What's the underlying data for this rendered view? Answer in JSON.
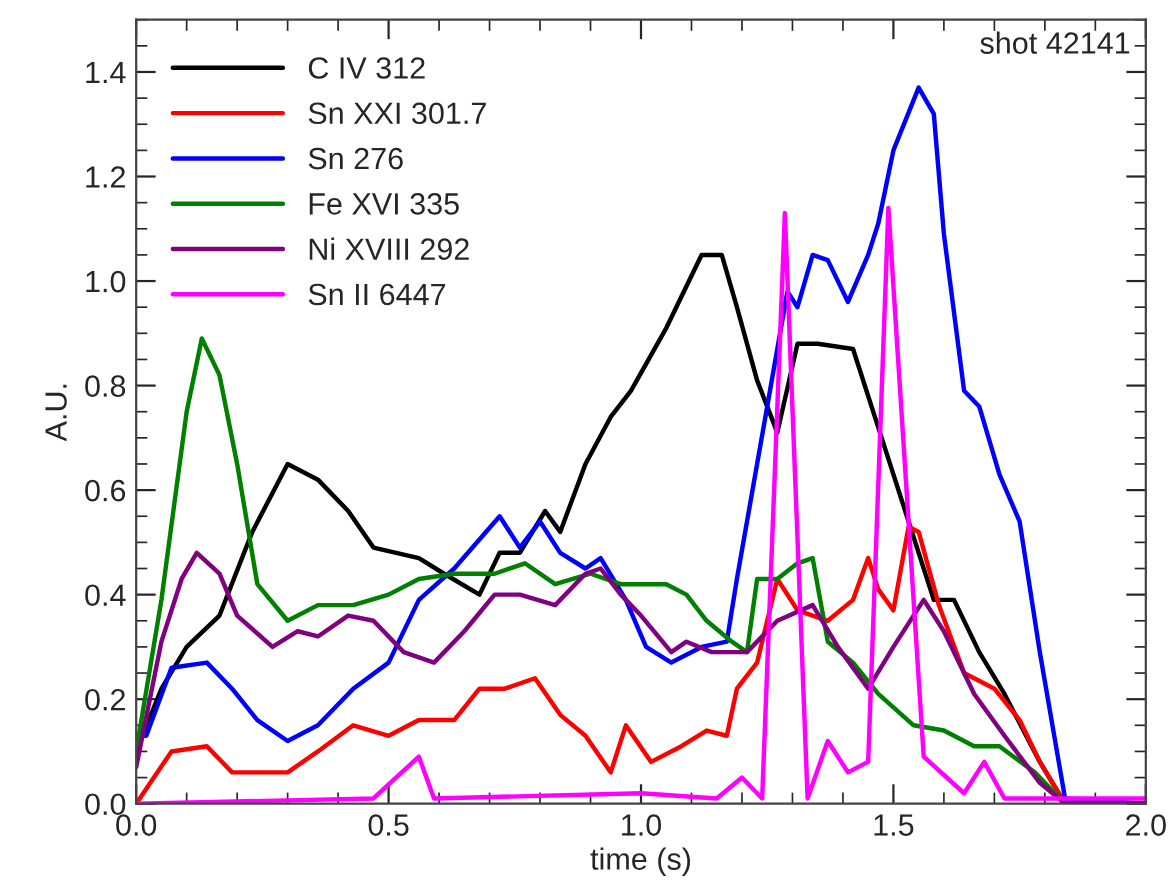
{
  "chart_data": {
    "type": "line",
    "xlabel": "time (s)",
    "ylabel": "A.U.",
    "annotations": [
      "shot 42141"
    ],
    "xlim": [
      0,
      2.0
    ],
    "xticks": [
      {
        "value": 0,
        "label": "0.0"
      },
      0.5,
      {
        "value": 1,
        "label": "1.0"
      },
      1.5,
      {
        "value": 2,
        "label": "2.0"
      }
    ],
    "ylim": [
      0,
      1.5
    ],
    "yticks": [
      {
        "value": 0,
        "label": "0.0"
      },
      0.2,
      0.4,
      0.6,
      0.8,
      {
        "value": 1,
        "label": "1.0"
      },
      1.2,
      1.4
    ],
    "grid": false,
    "legend": "top left",
    "series": [
      {
        "name": "C IV 312",
        "color": "#000000",
        "x": [
          0,
          0.05,
          0.1,
          0.165,
          0.23,
          0.3,
          0.36,
          0.42,
          0.47,
          0.56,
          0.61,
          0.68,
          0.72,
          0.76,
          0.81,
          0.84,
          0.89,
          0.94,
          0.98,
          1.05,
          1.12,
          1.16,
          1.19,
          1.23,
          1.27,
          1.31,
          1.35,
          1.42,
          1.47,
          1.53,
          1.58,
          1.62,
          1.67,
          1.72,
          1.79,
          1.84,
          2.0
        ],
        "values": [
          0.1,
          0.22,
          0.3,
          0.36,
          0.52,
          0.65,
          0.62,
          0.56,
          0.49,
          0.47,
          0.44,
          0.4,
          0.48,
          0.48,
          0.56,
          0.52,
          0.65,
          0.74,
          0.79,
          0.91,
          1.05,
          1.05,
          0.95,
          0.81,
          0.71,
          0.88,
          0.88,
          0.87,
          0.72,
          0.54,
          0.39,
          0.39,
          0.29,
          0.21,
          0.08,
          0,
          0
        ]
      },
      {
        "name": "Sn XXI 301.7",
        "color": "#ff0000",
        "x": [
          0,
          0.07,
          0.14,
          0.19,
          0.3,
          0.36,
          0.43,
          0.5,
          0.56,
          0.63,
          0.68,
          0.73,
          0.79,
          0.84,
          0.89,
          0.94,
          0.97,
          1.02,
          1.08,
          1.13,
          1.17,
          1.19,
          1.23,
          1.27,
          1.31,
          1.37,
          1.42,
          1.45,
          1.47,
          1.5,
          1.53,
          1.55,
          1.59,
          1.64,
          1.7,
          1.75,
          1.79,
          1.84,
          2.0
        ],
        "values": [
          0,
          0.1,
          0.11,
          0.06,
          0.06,
          0.1,
          0.15,
          0.13,
          0.16,
          0.16,
          0.22,
          0.22,
          0.24,
          0.17,
          0.13,
          0.06,
          0.15,
          0.08,
          0.11,
          0.14,
          0.13,
          0.22,
          0.27,
          0.43,
          0.37,
          0.35,
          0.39,
          0.47,
          0.41,
          0.37,
          0.53,
          0.52,
          0.38,
          0.25,
          0.22,
          0.16,
          0.08,
          0,
          0
        ]
      },
      {
        "name": "Sn 276",
        "color": "#0000ff",
        "x": [
          0,
          0.02,
          0.07,
          0.14,
          0.19,
          0.24,
          0.3,
          0.36,
          0.43,
          0.5,
          0.56,
          0.63,
          0.72,
          0.76,
          0.8,
          0.84,
          0.89,
          0.92,
          0.97,
          1.01,
          1.06,
          1.12,
          1.17,
          1.19,
          1.23,
          1.29,
          1.31,
          1.34,
          1.37,
          1.41,
          1.45,
          1.47,
          1.5,
          1.55,
          1.58,
          1.6,
          1.64,
          1.67,
          1.71,
          1.75,
          1.79,
          1.84,
          2.0
        ],
        "values": [
          0.13,
          0.13,
          0.26,
          0.27,
          0.22,
          0.16,
          0.12,
          0.15,
          0.22,
          0.27,
          0.39,
          0.45,
          0.55,
          0.49,
          0.54,
          0.48,
          0.45,
          0.47,
          0.39,
          0.3,
          0.27,
          0.3,
          0.31,
          0.43,
          0.65,
          0.98,
          0.95,
          1.05,
          1.04,
          0.96,
          1.05,
          1.11,
          1.25,
          1.37,
          1.32,
          1.09,
          0.79,
          0.76,
          0.63,
          0.54,
          0.29,
          0.01,
          0
        ]
      },
      {
        "name": "Fe XVI 335",
        "color": "#008000",
        "x": [
          0,
          0.05,
          0.1,
          0.13,
          0.165,
          0.2,
          0.24,
          0.3,
          0.36,
          0.43,
          0.5,
          0.56,
          0.63,
          0.71,
          0.77,
          0.83,
          0.9,
          0.96,
          1.05,
          1.09,
          1.13,
          1.18,
          1.21,
          1.23,
          1.27,
          1.31,
          1.34,
          1.37,
          1.42,
          1.47,
          1.54,
          1.6,
          1.66,
          1.71,
          1.78,
          1.84,
          2.0
        ],
        "values": [
          0.1,
          0.39,
          0.75,
          0.89,
          0.82,
          0.65,
          0.42,
          0.35,
          0.38,
          0.38,
          0.4,
          0.43,
          0.44,
          0.44,
          0.46,
          0.42,
          0.44,
          0.42,
          0.42,
          0.4,
          0.35,
          0.31,
          0.29,
          0.43,
          0.43,
          0.46,
          0.47,
          0.31,
          0.27,
          0.21,
          0.15,
          0.14,
          0.11,
          0.11,
          0.06,
          0,
          0
        ]
      },
      {
        "name": "Ni XVIII 292",
        "color": "#800080",
        "x": [
          0,
          0.05,
          0.09,
          0.12,
          0.165,
          0.2,
          0.27,
          0.32,
          0.36,
          0.42,
          0.47,
          0.53,
          0.59,
          0.65,
          0.71,
          0.76,
          0.83,
          0.89,
          0.92,
          0.96,
          1.0,
          1.06,
          1.09,
          1.14,
          1.21,
          1.27,
          1.34,
          1.39,
          1.45,
          1.5,
          1.56,
          1.6,
          1.66,
          1.72,
          1.79,
          1.84,
          2.0
        ],
        "values": [
          0.07,
          0.31,
          0.43,
          0.48,
          0.44,
          0.36,
          0.3,
          0.33,
          0.32,
          0.36,
          0.35,
          0.29,
          0.27,
          0.33,
          0.4,
          0.4,
          0.38,
          0.44,
          0.45,
          0.4,
          0.36,
          0.29,
          0.31,
          0.29,
          0.29,
          0.35,
          0.38,
          0.3,
          0.22,
          0.3,
          0.39,
          0.33,
          0.21,
          0.13,
          0.04,
          0,
          0
        ]
      },
      {
        "name": "Sn II 6447",
        "color": "#ff00ff",
        "x": [
          0,
          0.47,
          0.56,
          0.59,
          1.0,
          1.15,
          1.2,
          1.24,
          1.285,
          1.33,
          1.37,
          1.41,
          1.45,
          1.49,
          1.56,
          1.64,
          1.68,
          1.72,
          2.0
        ],
        "values": [
          0,
          0.01,
          0.09,
          0.01,
          0.02,
          0.01,
          0.05,
          0.01,
          1.13,
          0.01,
          0.12,
          0.06,
          0.08,
          1.14,
          0.09,
          0.02,
          0.08,
          0.01,
          0.01
        ]
      }
    ]
  }
}
